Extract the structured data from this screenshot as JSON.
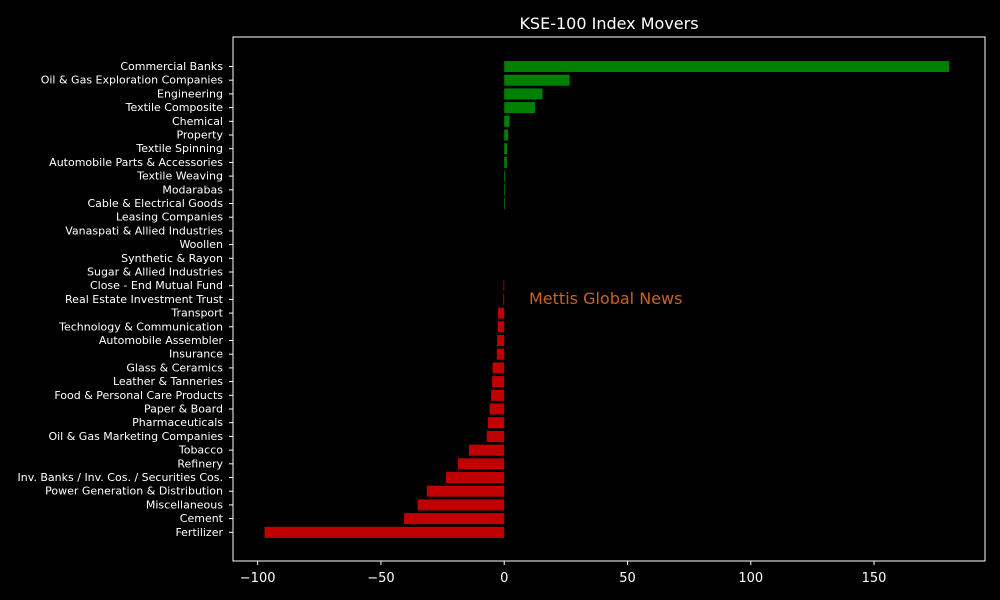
{
  "chart_data": {
    "type": "bar",
    "orientation": "horizontal",
    "title": "KSE-100 Index Movers",
    "xlabel": "",
    "ylabel": "",
    "xlim": [
      -110,
      195
    ],
    "xticks": [
      -100,
      -50,
      0,
      50,
      100,
      150
    ],
    "xtick_labels": [
      "−100",
      "−50",
      "0",
      "50",
      "100",
      "150"
    ],
    "grid": false,
    "annotation": "Mettis Global News",
    "colors": {
      "positive": "#008000",
      "negative": "#c00000",
      "annotation": "#c8641e",
      "background": "#000000",
      "text": "#ffffff"
    },
    "categories": [
      "Commercial Banks",
      "Oil & Gas Exploration Companies",
      "Engineering",
      "Textile Composite",
      "Chemical",
      "Property",
      "Textile Spinning",
      "Automobile Parts & Accessories",
      "Textile Weaving",
      "Modarabas",
      "Cable & Electrical Goods",
      "Leasing Companies",
      "Vanaspati & Allied Industries",
      "Woollen",
      "Synthetic & Rayon",
      "Sugar & Allied Industries",
      "Close - End Mutual Fund",
      "Real Estate Investment Trust",
      "Transport",
      "Technology & Communication",
      "Automobile Assembler",
      "Insurance",
      "Glass & Ceramics",
      "Leather & Tanneries",
      "Food & Personal Care Products",
      "Paper & Board",
      "Pharmaceuticals",
      "Oil & Gas Marketing Companies",
      "Tobacco",
      "Refinery",
      "Inv. Banks / Inv. Cos. / Securities Cos.",
      "Power Generation & Distribution",
      "Miscellaneous",
      "Cement",
      "Fertilizer"
    ],
    "values": [
      180.5,
      26.5,
      15.5,
      12.5,
      2.2,
      1.6,
      1.2,
      1.1,
      0.4,
      0.3,
      0.2,
      0,
      0,
      0,
      0,
      0,
      -0.3,
      -0.4,
      -2.5,
      -2.6,
      -2.9,
      -3.0,
      -4.7,
      -4.9,
      -5.3,
      -5.9,
      -6.6,
      -7.1,
      -14.3,
      -18.8,
      -23.6,
      -31.4,
      -35.1,
      -40.6,
      -97.2
    ]
  }
}
